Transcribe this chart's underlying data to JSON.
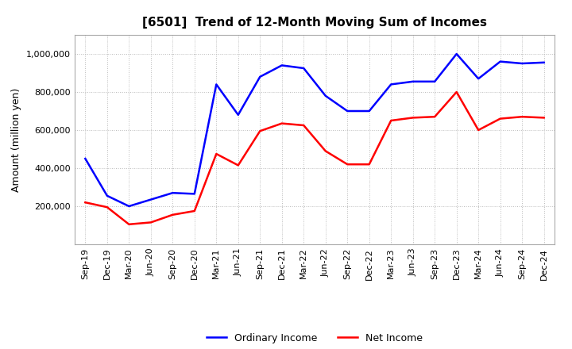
{
  "title": "[6501]  Trend of 12-Month Moving Sum of Incomes",
  "ylabel": "Amount (million yen)",
  "background_color": "#ffffff",
  "grid_color": "#bbbbbb",
  "x_labels": [
    "Sep-19",
    "Dec-19",
    "Mar-20",
    "Jun-20",
    "Sep-20",
    "Dec-20",
    "Mar-21",
    "Jun-21",
    "Sep-21",
    "Dec-21",
    "Mar-22",
    "Jun-22",
    "Sep-22",
    "Dec-22",
    "Mar-23",
    "Jun-23",
    "Sep-23",
    "Dec-23",
    "Mar-24",
    "Jun-24",
    "Sep-24",
    "Dec-24"
  ],
  "ordinary_income": [
    450000,
    255000,
    200000,
    235000,
    270000,
    265000,
    840000,
    680000,
    880000,
    940000,
    925000,
    780000,
    700000,
    700000,
    840000,
    855000,
    855000,
    1000000,
    870000,
    960000,
    950000,
    955000
  ],
  "net_income": [
    220000,
    195000,
    105000,
    115000,
    155000,
    175000,
    475000,
    415000,
    595000,
    635000,
    625000,
    490000,
    420000,
    420000,
    650000,
    665000,
    670000,
    800000,
    600000,
    660000,
    670000,
    665000
  ],
  "ordinary_color": "#0000ff",
  "net_color": "#ff0000",
  "ylim": [
    0,
    1100000
  ],
  "yticks": [
    200000,
    400000,
    600000,
    800000,
    1000000
  ],
  "line_width": 1.8,
  "title_fontsize": 11,
  "legend_fontsize": 9,
  "tick_fontsize": 8
}
